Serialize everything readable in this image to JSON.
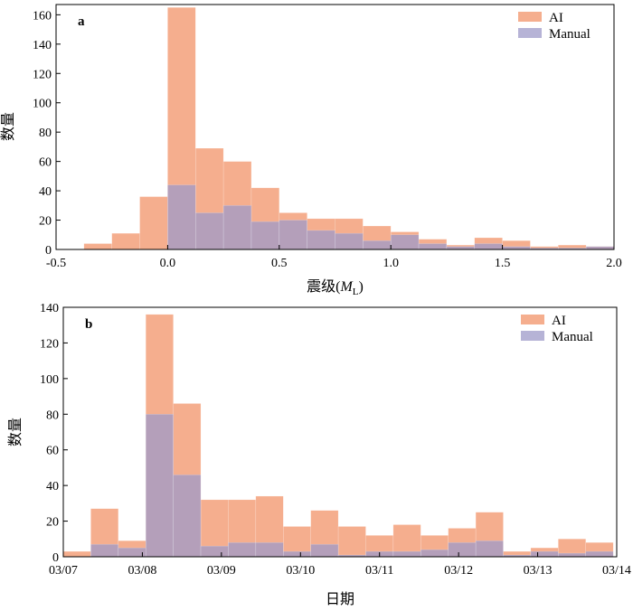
{
  "chart_data": [
    {
      "type": "bar",
      "panel_label": "a",
      "xlabel_prefix": "震级(",
      "xlabel_var": "M",
      "xlabel_sub": "L",
      "xlabel_suffix": ")",
      "ylabel": "数量",
      "xlim": [
        -0.5,
        2.0
      ],
      "ylim": [
        0,
        167
      ],
      "xticks": [
        -0.5,
        0.0,
        0.5,
        1.0,
        1.5,
        2.0
      ],
      "xtick_labels": [
        "-0.5",
        "0.0",
        "0.5",
        "1.0",
        "1.5",
        "2.0"
      ],
      "yticks": [
        0,
        20,
        40,
        60,
        80,
        100,
        120,
        140,
        160
      ],
      "yticks_labels": [
        "0",
        "20",
        "40",
        "60",
        "80",
        "100",
        "120",
        "140",
        "160"
      ],
      "bin_edges": [
        -0.375,
        -0.25,
        -0.125,
        0.0,
        0.125,
        0.25,
        0.375,
        0.5,
        0.625,
        0.75,
        0.875,
        1.0,
        1.125,
        1.25,
        1.375,
        1.5,
        1.625,
        1.75,
        1.875,
        2.0
      ],
      "series": [
        {
          "name": "AI",
          "color": "#f4a582",
          "values": [
            4,
            11,
            36,
            165,
            69,
            60,
            42,
            25,
            21,
            21,
            16,
            12,
            7,
            3,
            8,
            6,
            2,
            3,
            2
          ]
        },
        {
          "name": "Manual",
          "color": "#9e9ac8",
          "values": [
            0,
            0,
            0,
            44,
            25,
            30,
            19,
            20,
            13,
            11,
            6,
            10,
            4,
            2,
            4,
            2,
            1,
            1,
            2
          ]
        }
      ],
      "legend_position": "top-right"
    },
    {
      "type": "bar",
      "panel_label": "b",
      "xlabel": "日期",
      "ylabel": "数量",
      "xlim": [
        0,
        7
      ],
      "ylim": [
        0,
        140
      ],
      "xticks": [
        0,
        1,
        2,
        3,
        4,
        5,
        6,
        7
      ],
      "xtick_labels": [
        "03/07",
        "03/08",
        "03/09",
        "03/10",
        "03/11",
        "03/12",
        "03/13",
        "03/14"
      ],
      "yticks": [
        0,
        20,
        40,
        60,
        80,
        100,
        120,
        140
      ],
      "yticks_labels": [
        "0",
        "20",
        "40",
        "60",
        "80",
        "100",
        "120",
        "140"
      ],
      "bin_width": 0.3478,
      "series": [
        {
          "name": "AI",
          "color": "#f4a582",
          "values": [
            3,
            27,
            9,
            136,
            86,
            32,
            32,
            34,
            17,
            26,
            17,
            12,
            18,
            12,
            16,
            25,
            3,
            5,
            10,
            8
          ]
        },
        {
          "name": "Manual",
          "color": "#9e9ac8",
          "values": [
            0,
            7,
            5,
            80,
            46,
            6,
            8,
            8,
            3,
            7,
            1,
            3,
            3,
            4,
            8,
            9,
            1,
            3,
            2,
            3
          ]
        }
      ],
      "legend_position": "top-right"
    }
  ]
}
